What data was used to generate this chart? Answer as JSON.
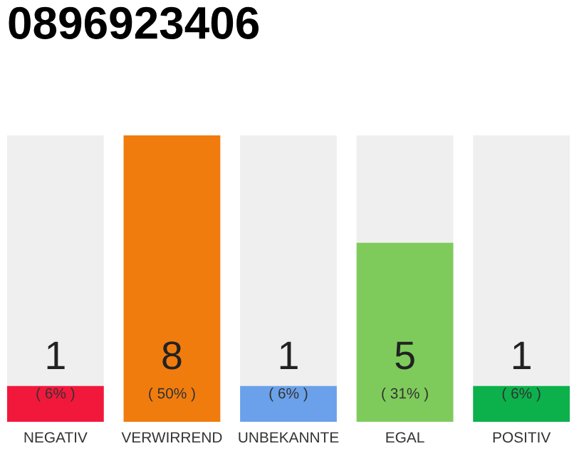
{
  "chart_data": {
    "type": "bar",
    "title": "0896923406",
    "categories": [
      "NEGATIV",
      "VERWIRREND",
      "UNBEKANNTE",
      "EGAL",
      "POSITIV"
    ],
    "values": [
      1,
      8,
      1,
      5,
      1
    ],
    "colors": [
      "#f2183c",
      "#f07c0e",
      "#6ba1ea",
      "#7ecb5b",
      "#0cb14b"
    ],
    "value_labels": [
      "1",
      "8",
      "1",
      "5",
      "1"
    ],
    "annotations": [
      "( 6% )",
      "( 50% )",
      "( 6% )",
      "( 31% )",
      "( 6% )"
    ],
    "grid": false,
    "tick_labels": "x"
  }
}
